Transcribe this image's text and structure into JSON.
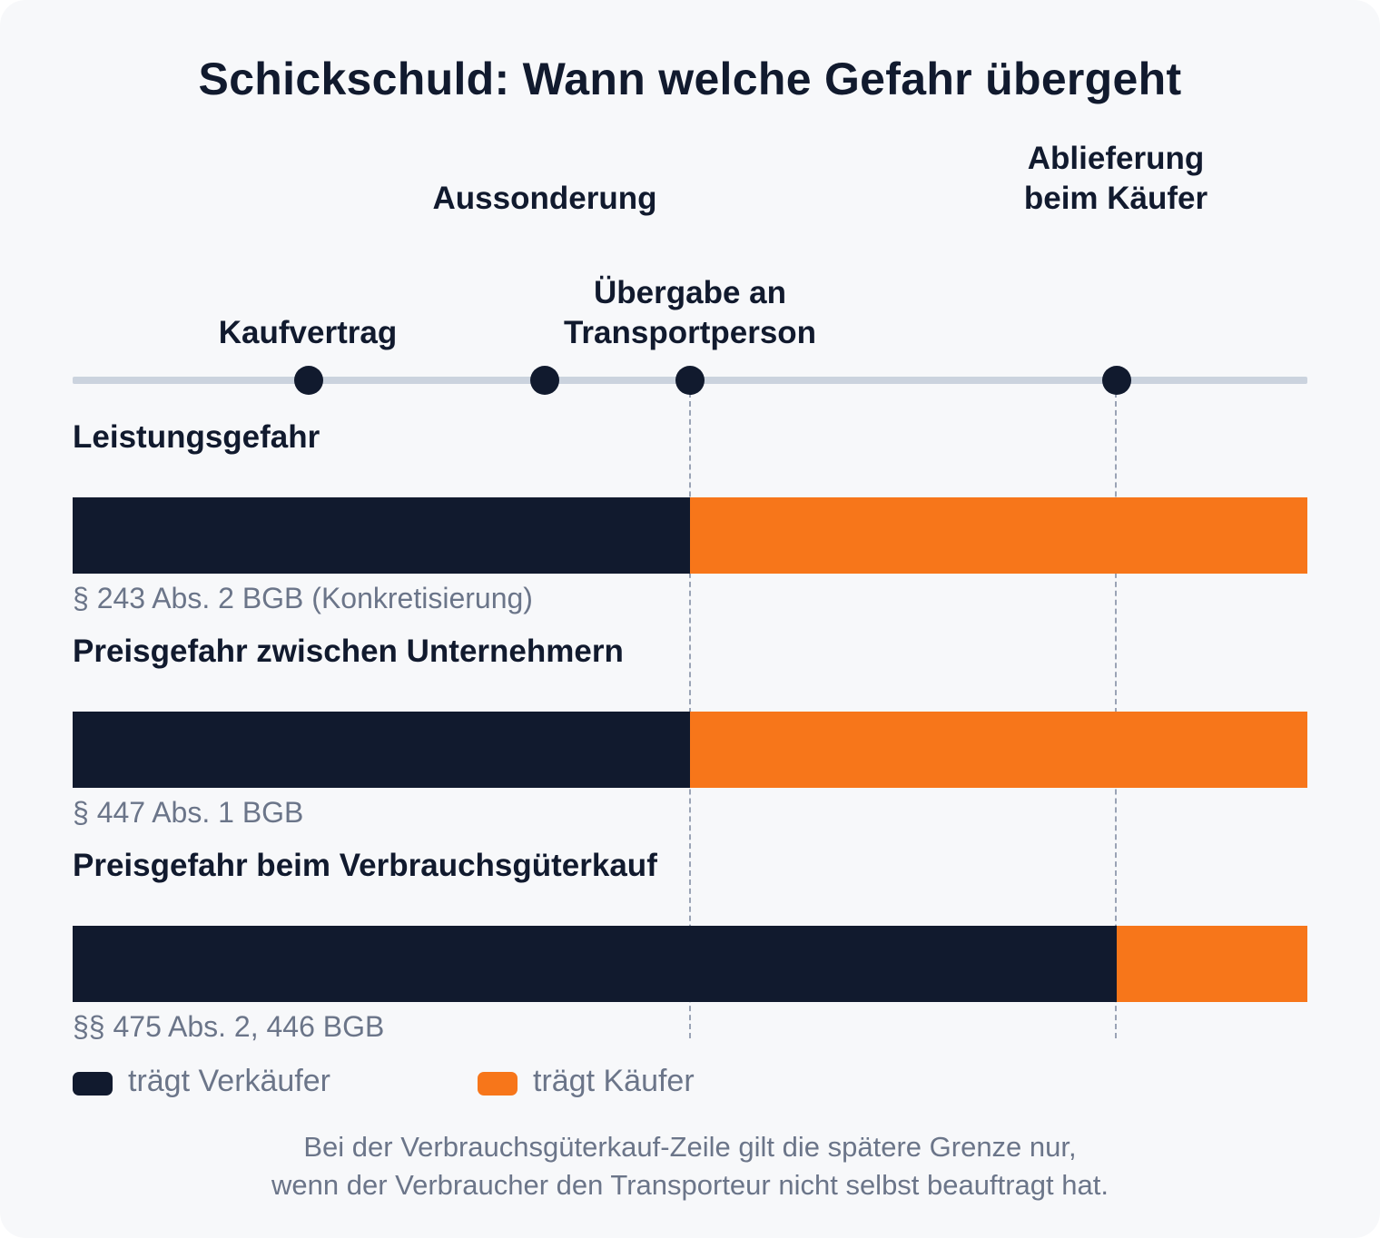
{
  "title": "Schickschuld: Wann welche Gefahr übergeht",
  "milestones": [
    {
      "id": "kaufvertrag",
      "lines": [
        "Kaufvertrag"
      ]
    },
    {
      "id": "aussonderung",
      "lines": [
        "Aussonderung"
      ]
    },
    {
      "id": "uebergabe",
      "lines": [
        "Übergabe an",
        "Transportperson"
      ]
    },
    {
      "id": "ablieferung",
      "lines": [
        "Ablieferung",
        "beim Käufer"
      ]
    }
  ],
  "rows": [
    {
      "title": "Leistungsgefahr",
      "citation": "§ 243 Abs. 2 BGB (Konkretisierung)",
      "transfer_at": "uebergabe"
    },
    {
      "title": "Preisgefahr zwischen Unternehmern",
      "citation": "§ 447 Abs. 1 BGB",
      "transfer_at": "uebergabe"
    },
    {
      "title": "Preisgefahr beim Verbrauchsgüterkauf",
      "citation": "§§ 475 Abs. 2, 446 BGB",
      "transfer_at": "ablieferung"
    }
  ],
  "legend": {
    "seller": {
      "label": "trägt Verkäufer",
      "color": "#111a2e"
    },
    "buyer": {
      "label": "trägt Käufer",
      "color": "#f7761a"
    }
  },
  "footnote": [
    "Bei der Verbrauchsgüterkauf-Zeile gilt die spätere Grenze nur,",
    "wenn der Verbraucher den Transporteur nicht selbst beauftragt hat."
  ]
}
